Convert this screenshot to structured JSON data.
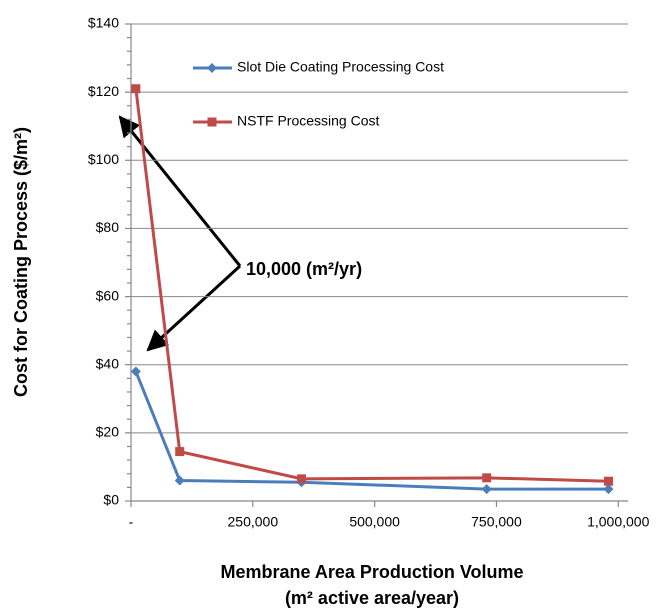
{
  "chart_data": {
    "type": "line",
    "y_label": "Cost for Coating Process ($/m²)",
    "x_label": [
      "Membrane Area Production Volume",
      "(m² active area/year)"
    ],
    "annotation": "10,000 (m²/yr)",
    "x": [
      10000,
      100000,
      350000,
      730000,
      980000
    ],
    "series": [
      {
        "name": "Slot Die Coating Processing Cost",
        "color": "#4a7ebb",
        "marker": "diamond",
        "values": [
          38,
          6,
          5.5,
          3.5,
          3.5
        ]
      },
      {
        "name": "NSTF Processing Cost",
        "color": "#be4b48",
        "marker": "square",
        "values": [
          121,
          14.5,
          6.5,
          6.8,
          5.8
        ]
      }
    ],
    "xlim": [
      0,
      1020000
    ],
    "xticks": [
      {
        "value": 0,
        "label": "-"
      },
      {
        "value": 250000,
        "label": "250,000"
      },
      {
        "value": 500000,
        "label": "500,000"
      },
      {
        "value": 750000,
        "label": "750,000"
      },
      {
        "value": 1000000,
        "label": "1,000,000"
      }
    ],
    "ylim": [
      0,
      140
    ],
    "yticks": [
      {
        "value": 0,
        "label": "$0"
      },
      {
        "value": 20,
        "label": "$20"
      },
      {
        "value": 40,
        "label": "$40"
      },
      {
        "value": 60,
        "label": "$60"
      },
      {
        "value": 80,
        "label": "$80"
      },
      {
        "value": 100,
        "label": "$100"
      },
      {
        "value": 120,
        "label": "$120"
      },
      {
        "value": 140,
        "label": "$140"
      }
    ],
    "grid": true,
    "legend": "top-left"
  }
}
